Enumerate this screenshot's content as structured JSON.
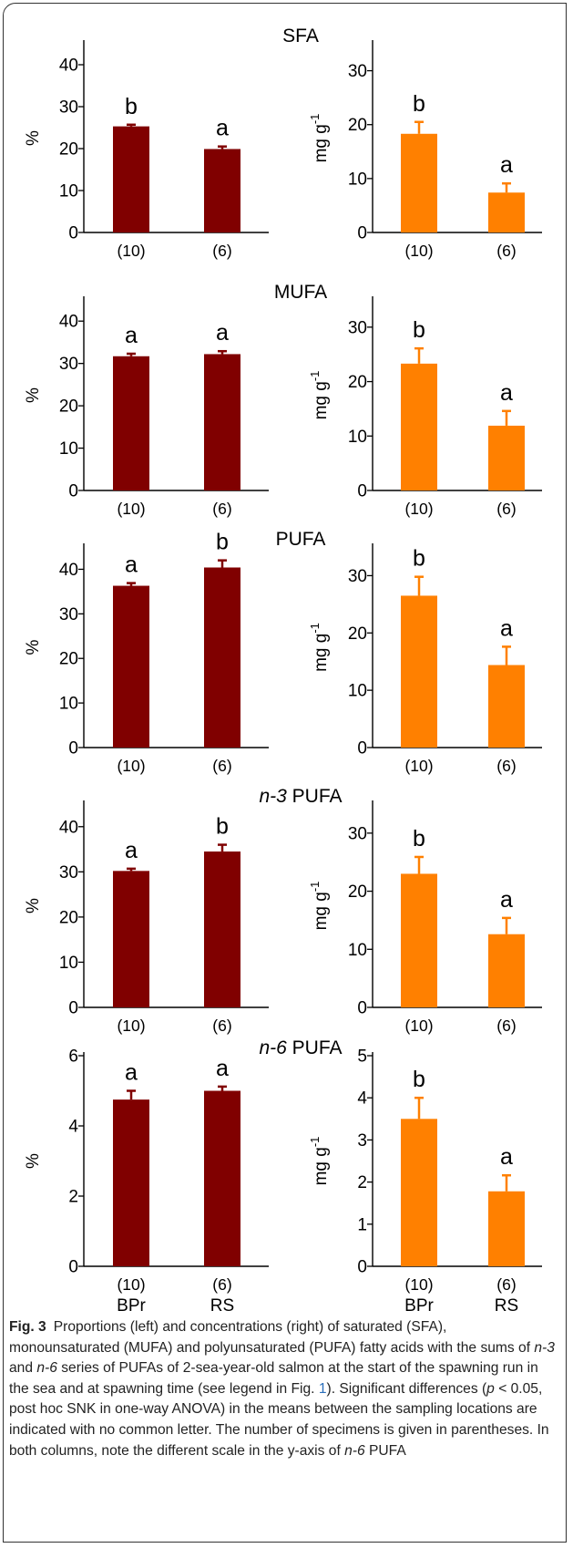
{
  "colors": {
    "left_bar": "#800000",
    "right_bar": "#ff8000",
    "axis": "#000000"
  },
  "chart_data": [
    {
      "type": "bar",
      "panel": "SFA",
      "title": "SFA",
      "title_italic_prefix": "",
      "ylabel": "%",
      "ylim": [
        0,
        45
      ],
      "yticks": [
        "0",
        "10",
        "20",
        "30",
        "40"
      ],
      "categories": [
        "(10)",
        "(6)"
      ],
      "values": [
        25.3,
        19.9
      ],
      "errors": [
        0.4,
        0.6
      ],
      "letters": [
        "b",
        "a"
      ],
      "xgroups": []
    },
    {
      "type": "bar",
      "panel": "SFA",
      "title": "",
      "ylabel": "mg g",
      "ylabel_sup": "-1",
      "ylim": [
        0,
        35
      ],
      "yticks": [
        "0",
        "10",
        "20",
        "30"
      ],
      "categories": [
        "(10)",
        "(6)"
      ],
      "values": [
        18.3,
        7.4
      ],
      "errors": [
        2.2,
        1.7
      ],
      "letters": [
        "b",
        "a"
      ],
      "xgroups": []
    },
    {
      "type": "bar",
      "panel": "MUFA",
      "title": "MUFA",
      "title_italic_prefix": "",
      "ylabel": "%",
      "ylim": [
        0,
        45
      ],
      "yticks": [
        "0",
        "10",
        "20",
        "30",
        "40"
      ],
      "categories": [
        "(10)",
        "(6)"
      ],
      "values": [
        31.7,
        32.2
      ],
      "errors": [
        0.6,
        0.7
      ],
      "letters": [
        "a",
        "a"
      ],
      "xgroups": []
    },
    {
      "type": "bar",
      "panel": "MUFA",
      "title": "",
      "ylabel": "mg g",
      "ylabel_sup": "-1",
      "ylim": [
        0,
        35
      ],
      "yticks": [
        "0",
        "10",
        "20",
        "30"
      ],
      "categories": [
        "(10)",
        "(6)"
      ],
      "values": [
        23.3,
        11.9
      ],
      "errors": [
        2.8,
        2.7
      ],
      "letters": [
        "b",
        "a"
      ],
      "xgroups": []
    },
    {
      "type": "bar",
      "panel": "PUFA",
      "title": "PUFA",
      "title_italic_prefix": "",
      "ylabel": "%",
      "ylim": [
        0,
        45
      ],
      "yticks": [
        "0",
        "10",
        "20",
        "30",
        "40"
      ],
      "categories": [
        "(10)",
        "(6)"
      ],
      "values": [
        36.3,
        40.4
      ],
      "errors": [
        0.6,
        1.6
      ],
      "letters": [
        "a",
        "b"
      ],
      "xgroups": []
    },
    {
      "type": "bar",
      "panel": "PUFA",
      "title": "",
      "ylabel": "mg g",
      "ylabel_sup": "-1",
      "ylim": [
        0,
        35
      ],
      "yticks": [
        "0",
        "10",
        "20",
        "30"
      ],
      "categories": [
        "(10)",
        "(6)"
      ],
      "values": [
        26.5,
        14.4
      ],
      "errors": [
        3.3,
        3.2
      ],
      "letters": [
        "b",
        "a"
      ],
      "xgroups": []
    },
    {
      "type": "bar",
      "panel": "n-3 PUFA",
      "title": " PUFA",
      "title_italic_prefix": "n-3",
      "ylabel": "%",
      "ylim": [
        0,
        45
      ],
      "yticks": [
        "0",
        "10",
        "20",
        "30",
        "40"
      ],
      "categories": [
        "(10)",
        "(6)"
      ],
      "values": [
        30.2,
        34.5
      ],
      "errors": [
        0.5,
        1.5
      ],
      "letters": [
        "a",
        "b"
      ],
      "xgroups": []
    },
    {
      "type": "bar",
      "panel": "n-3 PUFA",
      "title": "",
      "ylabel": "mg g",
      "ylabel_sup": "-1",
      "ylim": [
        0,
        35
      ],
      "yticks": [
        "0",
        "10",
        "20",
        "30"
      ],
      "categories": [
        "(10)",
        "(6)"
      ],
      "values": [
        23.0,
        12.6
      ],
      "errors": [
        2.9,
        2.8
      ],
      "letters": [
        "b",
        "a"
      ],
      "xgroups": []
    },
    {
      "type": "bar",
      "panel": "n-6 PUFA",
      "title": " PUFA",
      "title_italic_prefix": "n-6",
      "ylabel": "%",
      "ylim": [
        0,
        6
      ],
      "yticks": [
        "0",
        "2",
        "4",
        "6"
      ],
      "categories": [
        "(10)",
        "(6)"
      ],
      "values": [
        4.75,
        5.0
      ],
      "errors": [
        0.25,
        0.12
      ],
      "letters": [
        "a",
        "a"
      ],
      "xgroups": [
        "BPr",
        "RS"
      ]
    },
    {
      "type": "bar",
      "panel": "n-6 PUFA",
      "title": "",
      "ylabel": "mg g",
      "ylabel_sup": "-1",
      "ylim": [
        0,
        5
      ],
      "yticks": [
        "0",
        "1",
        "2",
        "3",
        "4",
        "5"
      ],
      "categories": [
        "(10)",
        "(6)"
      ],
      "values": [
        3.5,
        1.78
      ],
      "errors": [
        0.5,
        0.38
      ],
      "letters": [
        "b",
        "a"
      ],
      "xgroups": [
        "BPr",
        "RS"
      ]
    }
  ],
  "caption": {
    "fig_label": "Fig. 3",
    "p1": "Proportions (left) and concentrations (right) of saturated (SFA), monounsaturated (MUFA) and polyunsaturated (PUFA) fatty acids with the sums of ",
    "i1": "n-3",
    "p2": " and ",
    "i2": "n-6",
    "p3": " series of PUFAs of 2-sea-year-old salmon at the start of the spawning run in the sea and at spawning time (see legend in Fig. ",
    "link": "1",
    "p4": "). Significant differences (",
    "i3": "p",
    "p5": " < 0.05, post hoc SNK in one-way ANOVA) in the means between the sampling locations are indicated with no common letter. The number of specimens is given in parentheses. In both columns, note the different scale in the y-axis of ",
    "i4": "n-6",
    "p6": " PUFA"
  }
}
